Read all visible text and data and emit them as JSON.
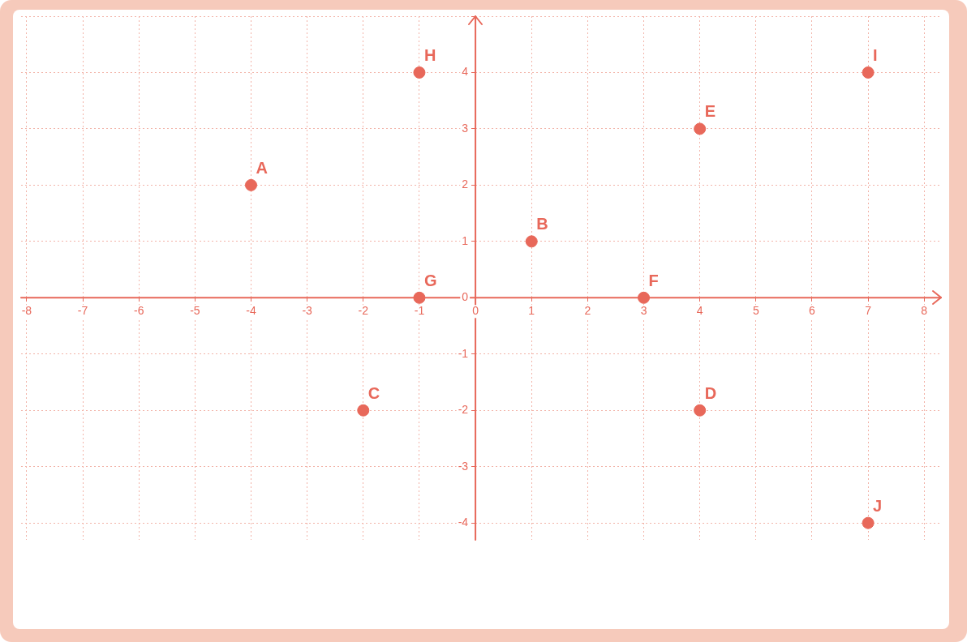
{
  "chart_data": {
    "type": "scatter",
    "series": [
      {
        "color": "#e8685a",
        "x": [
          -4,
          1,
          -2,
          4,
          4,
          3,
          -1,
          -1,
          7,
          7
        ],
        "values": [
          2,
          1,
          -2,
          -2,
          3,
          0,
          0,
          4,
          4,
          -4
        ]
      }
    ],
    "annotations": [
      {
        "text": "A",
        "x": -4,
        "y": 2
      },
      {
        "text": "B",
        "x": 1,
        "y": 1
      },
      {
        "text": "C",
        "x": -2,
        "y": -2
      },
      {
        "text": "D",
        "x": 4,
        "y": -2
      },
      {
        "text": "E",
        "x": 4,
        "y": 3
      },
      {
        "text": "F",
        "x": 3,
        "y": 0
      },
      {
        "text": "G",
        "x": -1,
        "y": 0
      },
      {
        "text": "H",
        "x": -1,
        "y": 4
      },
      {
        "text": "I",
        "x": 7,
        "y": 4
      },
      {
        "text": "J",
        "x": 7,
        "y": -4
      }
    ],
    "xlim": [
      -8.1,
      8.3
    ],
    "ylim": [
      -4.3,
      5
    ],
    "xticks": [
      -8,
      -7,
      -6,
      -5,
      -4,
      -3,
      -2,
      -1,
      0,
      1,
      2,
      3,
      4,
      5,
      6,
      7,
      8
    ],
    "yticks": [
      -4,
      -3,
      -2,
      -1,
      0,
      1,
      2,
      3,
      4,
      {
        "value": 5,
        "label": null
      }
    ],
    "grid": true,
    "marker": "circle",
    "legend": false
  }
}
